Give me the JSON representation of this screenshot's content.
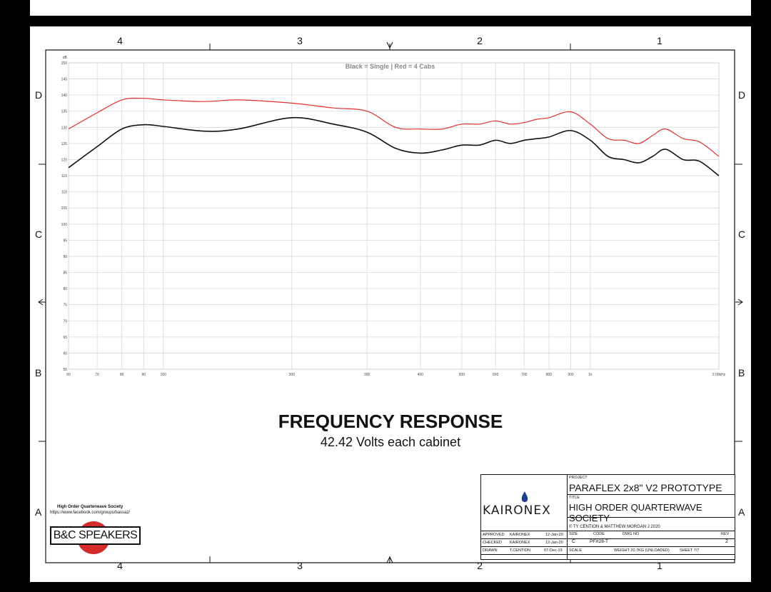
{
  "zones_top": [
    "4",
    "3",
    "2",
    "1"
  ],
  "zones_side": [
    "D",
    "C",
    "B",
    "A"
  ],
  "title_block": {
    "project_label": "PROJECT",
    "project": "PARAFLEX 2x8\" V2 PROTOTYPE",
    "title_label": "TITLE",
    "title": "HIGH ORDER QUARTERWAVE SOCIETY",
    "copyright": "© TY CENTION & MATTHEW MORGAN J 2020",
    "approved_label": "APPROVED",
    "approved_by": "KAIRONEX",
    "approved_date": "12-Jan-20",
    "checked_label": "CHECKED",
    "checked_by": "KAIRONEX",
    "checked_date": "12-Jan-20",
    "drawn_label": "DRAWN",
    "drawn_by": "T.CENTION",
    "drawn_date": "07-Dec-19",
    "size_label": "SIZE",
    "size": "C",
    "code_label": "CODE",
    "code": "PFX28-T",
    "dwg_label": "DWG NO",
    "rev_label": "REV",
    "rev": "2",
    "scale_label": "SCALE",
    "weight": "WEIGHT 20.7KG (UNLOADED)",
    "sheet": "SHEET 7/7",
    "logo": "KAIRONEX"
  },
  "footer_logo": {
    "society": "High Order Quarterwave Society",
    "url": "https://www.facebook.com/groups/bassaz/",
    "brand": "B&C SPEAKERS"
  },
  "chart_heading": {
    "title": "FREQUENCY RESPONSE",
    "subtitle": "42.42 Volts each cabinet"
  },
  "colors": {
    "single": "#111111",
    "four_cabs": "#e03030",
    "grid": "#d9d9d9"
  },
  "chart_data": {
    "type": "line",
    "title": "Black = Single | Red = 4 Cabs",
    "xlabel": "",
    "ylabel": "dB",
    "x_scale": "log",
    "xlim": [
      60,
      2000
    ],
    "ylim": [
      55,
      150
    ],
    "x_ticks": [
      {
        "v": 60,
        "label": "60"
      },
      {
        "v": 70,
        "label": "70"
      },
      {
        "v": 80,
        "label": "80"
      },
      {
        "v": 90,
        "label": "90"
      },
      {
        "v": 100,
        "label": "100"
      },
      {
        "v": 200,
        "label": "200"
      },
      {
        "v": 300,
        "label": "300"
      },
      {
        "v": 400,
        "label": "400"
      },
      {
        "v": 500,
        "label": "500"
      },
      {
        "v": 600,
        "label": "600"
      },
      {
        "v": 700,
        "label": "700"
      },
      {
        "v": 800,
        "label": "800"
      },
      {
        "v": 900,
        "label": "900"
      },
      {
        "v": 1000,
        "label": "1k"
      },
      {
        "v": 2000,
        "label": "2.00kHz"
      }
    ],
    "y_ticks": [
      150,
      145,
      140,
      135,
      130,
      125,
      120,
      115,
      110,
      105,
      100,
      95,
      90,
      85,
      80,
      75,
      70,
      65,
      60,
      55
    ],
    "grid": true,
    "series": [
      {
        "name": "Single",
        "color": "#111111",
        "x": [
          60,
          70,
          80,
          90,
          100,
          125,
          150,
          200,
          250,
          300,
          350,
          400,
          450,
          500,
          550,
          600,
          650,
          700,
          750,
          800,
          900,
          1000,
          1100,
          1200,
          1300,
          1400,
          1500,
          1650,
          1800,
          2000
        ],
        "y": [
          117.5,
          124,
          129.5,
          130.8,
          130.3,
          128.8,
          129.5,
          133,
          131,
          128.5,
          123.5,
          122,
          123,
          124.5,
          124.5,
          126,
          125,
          126,
          126.5,
          127,
          129,
          126,
          121,
          120,
          119,
          121,
          123.2,
          120,
          119.5,
          115
        ]
      },
      {
        "name": "4 Cabs",
        "color": "#e03030",
        "x": [
          60,
          70,
          80,
          90,
          100,
          125,
          150,
          200,
          250,
          300,
          350,
          400,
          450,
          500,
          550,
          600,
          650,
          700,
          750,
          800,
          900,
          1000,
          1100,
          1200,
          1300,
          1400,
          1500,
          1650,
          1800,
          2000
        ],
        "y": [
          129.5,
          134.5,
          138.5,
          139,
          138.5,
          138,
          138.5,
          137.5,
          136,
          135,
          130,
          129.5,
          129.5,
          131,
          131,
          132,
          131,
          131.5,
          132.5,
          133,
          134.8,
          131,
          126.5,
          126,
          125,
          127.5,
          129.5,
          126.5,
          125.5,
          121
        ]
      }
    ]
  }
}
